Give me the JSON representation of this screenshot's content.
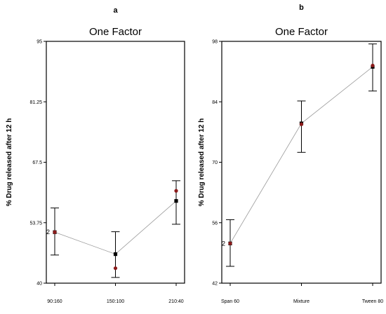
{
  "chart_data": [
    {
      "type": "line",
      "panel_label": "a",
      "title": "One Factor",
      "xlabel": "",
      "ylabel": "% Drug released after 12 h",
      "categories": [
        "90:160",
        "150:100",
        "210:40"
      ],
      "y_ticks": [
        "40",
        "53.75",
        "67.5",
        "81.25",
        "95"
      ],
      "ylim": [
        40,
        95
      ],
      "predicted": [
        51.6,
        46.6,
        58.7
      ],
      "ci_upper": [
        57.1,
        51.7,
        63.3
      ],
      "ci_lower": [
        46.4,
        41.3,
        53.4
      ],
      "observed": [
        51.6,
        43.4,
        61.0
      ],
      "annotations": [
        {
          "category": "90:160",
          "text": "2"
        }
      ],
      "colors": {
        "line": "#9a9a9a",
        "predicted": "#000000",
        "observed": "#8b1a1a"
      },
      "grid": false
    },
    {
      "type": "line",
      "panel_label": "b",
      "title": "One Factor",
      "xlabel": "",
      "ylabel": "% Drug released after 12 h",
      "categories": [
        "Span 60",
        "Mixture",
        "Tween 80"
      ],
      "y_ticks": [
        "42",
        "56",
        "70",
        "84",
        "98"
      ],
      "ylim": [
        42,
        98
      ],
      "predicted": [
        51.2,
        79.0,
        92.1
      ],
      "ci_upper": [
        56.7,
        84.2,
        97.4
      ],
      "ci_lower": [
        45.9,
        72.3,
        86.5
      ],
      "observed": [
        51.2,
        78.8,
        92.4
      ],
      "annotations": [
        {
          "category": "Span 60",
          "text": "2"
        }
      ],
      "colors": {
        "line": "#9a9a9a",
        "predicted": "#000000",
        "observed": "#8b1a1a"
      },
      "grid": false
    }
  ]
}
